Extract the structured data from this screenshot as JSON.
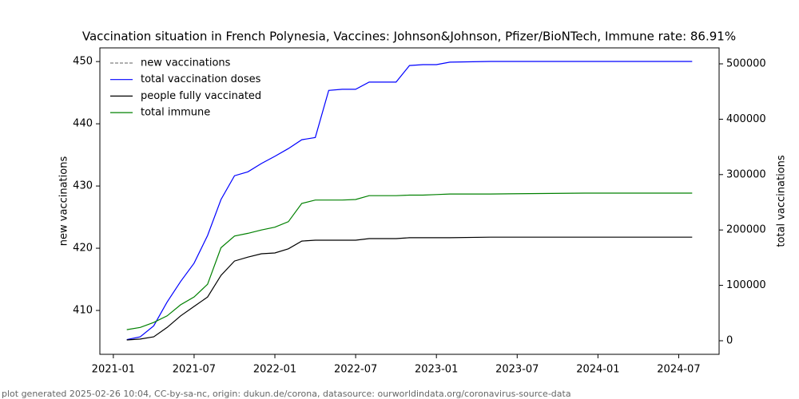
{
  "chart_data": {
    "type": "line",
    "title": "Vaccination situation in French Polynesia, Vaccines: Johnson&Johnson, Pfizer/BioNTech, Immune rate: 86.91%",
    "ylabel": "new vaccinations",
    "y2label": "total vaccinations",
    "footer": "plot generated 2025-02-26 10:04, CC-by-sa-nc, origin: dukun.de/corona, datasource: ourworldindata.org/coronavirus-source-data",
    "x": [
      "2021-02",
      "2021-03",
      "2021-04",
      "2021-05",
      "2021-06",
      "2021-07",
      "2021-08",
      "2021-09",
      "2021-10",
      "2021-11",
      "2021-12",
      "2022-01",
      "2022-02",
      "2022-03",
      "2022-04",
      "2022-05",
      "2022-06",
      "2022-07",
      "2022-08",
      "2022-09",
      "2022-10",
      "2022-11",
      "2022-12",
      "2023-01",
      "2023-02",
      "2023-05",
      "2023-12",
      "2024-08"
    ],
    "xlim": [
      "2020-12",
      "2024-10"
    ],
    "xticks": [
      "2021-01",
      "2021-07",
      "2022-01",
      "2022-07",
      "2023-01",
      "2023-07",
      "2024-01",
      "2024-07"
    ],
    "ylim": [
      402.95,
      452.2
    ],
    "yticks": [
      410,
      420,
      430,
      440,
      450
    ],
    "y2lim": [
      -24500,
      528800
    ],
    "y2ticks": [
      0,
      100000,
      200000,
      300000,
      400000,
      500000
    ],
    "legend": "upper left",
    "series": [
      {
        "name": "new vaccinations",
        "color": "#808080",
        "dashed": true,
        "axis": "y",
        "values": [
          null,
          null,
          null,
          null,
          null,
          null,
          null,
          null,
          null,
          null,
          null,
          null,
          null,
          null,
          null,
          null,
          null,
          null,
          null,
          null,
          null,
          null,
          null,
          null,
          null,
          null,
          null,
          null
        ]
      },
      {
        "name": "total vaccination doses",
        "color": "#0000ff",
        "axis": "y2",
        "values": [
          2000,
          7000,
          27000,
          70000,
          107000,
          140000,
          190000,
          255000,
          298000,
          305000,
          320000,
          333000,
          347000,
          363000,
          367000,
          452000,
          454000,
          454000,
          467000,
          467000,
          467000,
          497000,
          498500,
          498500,
          503000,
          504300,
          504300,
          504300
        ]
      },
      {
        "name": "people fully vaccinated",
        "color": "#000000",
        "axis": "y2",
        "values": [
          1500,
          3000,
          7000,
          24000,
          45000,
          62000,
          79000,
          118000,
          144000,
          151000,
          157000,
          158500,
          166000,
          180000,
          181500,
          181500,
          181500,
          181500,
          184500,
          184500,
          184500,
          186000,
          186000,
          186000,
          186000,
          187000,
          187000,
          187000
        ]
      },
      {
        "name": "total immune",
        "color": "#008000",
        "axis": "y2",
        "values": [
          20000,
          24000,
          33000,
          45000,
          65000,
          79000,
          102000,
          168000,
          189000,
          194000,
          200000,
          205000,
          215000,
          248000,
          254000,
          254000,
          254000,
          255000,
          262000,
          262000,
          262000,
          263000,
          263000,
          264000,
          265000,
          265000,
          266500,
          266500
        ]
      }
    ]
  }
}
